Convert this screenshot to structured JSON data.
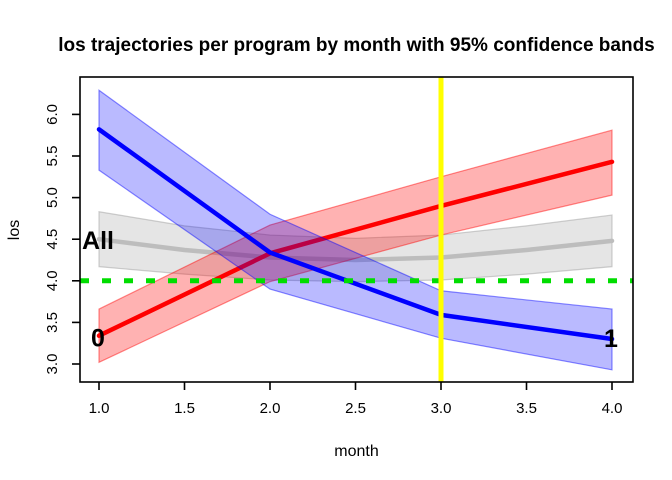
{
  "chart_data": {
    "type": "line",
    "title": "los trajectories per program by month with 95% confidence bands",
    "xlabel": "month",
    "ylabel": "los",
    "xlim": [
      0.89,
      4.12
    ],
    "ylim": [
      2.78,
      6.44
    ],
    "x_ticks": [
      1.0,
      1.5,
      2.0,
      2.5,
      3.0,
      3.5,
      4.0
    ],
    "x_tick_labels": [
      "1.0",
      "1.5",
      "2.0",
      "2.5",
      "3.0",
      "3.5",
      "4.0"
    ],
    "y_ticks": [
      3.0,
      3.5,
      4.0,
      4.5,
      5.0,
      5.5,
      6.0
    ],
    "y_tick_labels": [
      "3.0",
      "3.5",
      "4.0",
      "4.5",
      "5.0",
      "5.5",
      "6.0"
    ],
    "grid": "off",
    "legend": "inline-labels",
    "series": [
      {
        "name": "all-programs",
        "label": "All",
        "label_x": 1.0,
        "label_y": 4.49,
        "color": "#bdbdbd",
        "band_color": "rgba(150,150,150,0.25)",
        "band_edge_color": "rgba(150,150,150,0.45)",
        "x": [
          1.0,
          1.5,
          2.0,
          2.5,
          3.0,
          3.5,
          4.0
        ],
        "y": [
          4.5,
          4.37,
          4.28,
          4.25,
          4.28,
          4.37,
          4.48
        ],
        "upper": [
          4.83,
          4.66,
          4.55,
          4.51,
          4.55,
          4.66,
          4.79
        ],
        "lower": [
          4.17,
          4.08,
          4.01,
          3.99,
          4.01,
          4.08,
          4.17
        ]
      },
      {
        "name": "program-0",
        "label": "0",
        "label_x": 1.0,
        "label_y": 3.32,
        "color": "#ff0000",
        "band_color": "rgba(255,0,0,0.30)",
        "band_edge_color": "rgba(255,0,0,0.45)",
        "x": [
          1.0,
          2.0,
          3.0,
          4.0
        ],
        "y": [
          3.34,
          4.33,
          4.9,
          5.43
        ],
        "upper": [
          3.66,
          4.67,
          5.25,
          5.81
        ],
        "lower": [
          3.02,
          3.99,
          4.55,
          5.03
        ]
      },
      {
        "name": "program-1",
        "label": "1",
        "label_x": 4.0,
        "label_y": 3.31,
        "color": "#0000ff",
        "band_color": "rgba(0,0,255,0.27)",
        "band_edge_color": "rgba(0,0,255,0.45)",
        "x": [
          1.0,
          2.0,
          3.0,
          4.0
        ],
        "y": [
          5.82,
          4.34,
          3.59,
          3.3
        ],
        "upper": [
          6.29,
          4.8,
          3.88,
          3.66
        ],
        "lower": [
          5.33,
          3.9,
          3.31,
          2.93
        ]
      }
    ],
    "reference_lines": [
      {
        "name": "threshold-line",
        "orientation": "horizontal",
        "value": 4.0,
        "color": "#00dd00",
        "style": "dashed",
        "width": 5
      },
      {
        "name": "month-3-marker-line",
        "orientation": "vertical",
        "value": 3.0,
        "color": "#ffff00",
        "style": "solid",
        "width": 5
      }
    ]
  }
}
